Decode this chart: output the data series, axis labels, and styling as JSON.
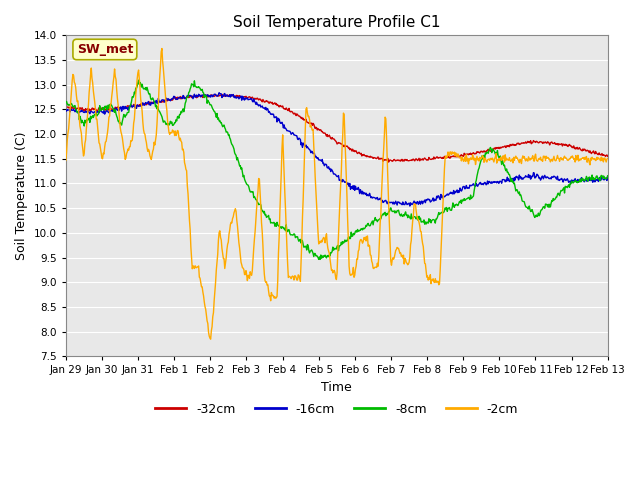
{
  "title": "Soil Temperature Profile C1",
  "xlabel": "Time",
  "ylabel": "Soil Temperature (C)",
  "ylim": [
    7.5,
    14.0
  ],
  "yticks": [
    7.5,
    8.0,
    8.5,
    9.0,
    9.5,
    10.0,
    10.5,
    11.0,
    11.5,
    12.0,
    12.5,
    13.0,
    13.5,
    14.0
  ],
  "colors": {
    "-32cm": "#cc0000",
    "-16cm": "#0000cc",
    "-8cm": "#00bb00",
    "-2cm": "#ffaa00"
  },
  "legend_labels": [
    "-32cm",
    "-16cm",
    "-8cm",
    "-2cm"
  ],
  "annotation_text": "SW_met",
  "annotation_color": "#880000",
  "annotation_bg": "#ffffcc",
  "annotation_edge": "#aaaa00",
  "axes_bg": "#e8e8e8",
  "grid_color": "#ffffff",
  "date_labels": [
    "Jan 29",
    "Jan 30",
    "Jan 31",
    "Feb 1",
    "Feb 2",
    "Feb 3",
    "Feb 4",
    "Feb 5",
    "Feb 6",
    "Feb 7",
    "Feb 8",
    "Feb 9",
    "Feb 10",
    "Feb 11",
    "Feb 12",
    "Feb 13"
  ],
  "r32_knots_x": [
    0,
    0.5,
    1,
    1.5,
    2,
    2.5,
    3,
    3.5,
    4,
    4.5,
    5,
    5.5,
    6,
    6.5,
    7,
    7.5,
    8,
    8.5,
    9,
    9.5,
    10,
    10.5,
    11,
    11.5,
    12,
    12.5,
    13,
    13.5,
    14,
    14.5,
    15
  ],
  "r32_knots_y": [
    12.55,
    12.5,
    12.5,
    12.53,
    12.58,
    12.65,
    12.72,
    12.76,
    12.78,
    12.78,
    12.75,
    12.68,
    12.55,
    12.35,
    12.1,
    11.85,
    11.65,
    11.52,
    11.47,
    11.47,
    11.5,
    11.53,
    11.57,
    11.63,
    11.72,
    11.8,
    11.85,
    11.82,
    11.75,
    11.65,
    11.55
  ],
  "r16_knots_x": [
    0,
    0.5,
    1,
    1.5,
    2,
    2.5,
    3,
    3.5,
    4,
    4.5,
    5,
    5.5,
    6,
    6.5,
    7,
    7.5,
    8,
    8.5,
    9,
    9.5,
    10,
    10.5,
    11,
    11.5,
    12,
    12.5,
    13,
    13.5,
    14,
    14.5,
    15
  ],
  "r16_knots_y": [
    12.5,
    12.45,
    12.45,
    12.5,
    12.58,
    12.65,
    12.72,
    12.76,
    12.78,
    12.78,
    12.72,
    12.55,
    12.2,
    11.85,
    11.5,
    11.15,
    10.9,
    10.72,
    10.6,
    10.58,
    10.65,
    10.75,
    10.9,
    11.0,
    11.05,
    11.1,
    11.15,
    11.1,
    11.05,
    11.08,
    11.1
  ],
  "r8_knots_x": [
    0,
    0.25,
    0.5,
    0.75,
    1,
    1.25,
    1.5,
    1.75,
    2,
    2.25,
    2.5,
    2.75,
    3,
    3.25,
    3.5,
    3.75,
    4,
    4.25,
    4.5,
    4.75,
    5,
    5.25,
    5.5,
    5.75,
    6,
    6.25,
    6.5,
    6.75,
    7,
    7.25,
    7.5,
    7.75,
    8,
    8.25,
    8.5,
    8.75,
    9,
    9.25,
    9.5,
    9.75,
    10,
    10.25,
    10.5,
    10.75,
    11,
    11.25,
    11.5,
    11.75,
    12,
    12.25,
    12.5,
    12.75,
    13,
    13.25,
    13.5,
    13.75,
    14,
    14.25,
    14.5,
    14.75,
    15
  ],
  "r8_knots_y": [
    12.65,
    12.55,
    12.2,
    12.35,
    12.5,
    12.6,
    12.2,
    12.5,
    13.05,
    12.9,
    12.6,
    12.2,
    12.2,
    12.5,
    13.05,
    12.9,
    12.6,
    12.3,
    12.0,
    11.5,
    11.0,
    10.7,
    10.4,
    10.2,
    10.1,
    10.0,
    9.82,
    9.65,
    9.5,
    9.55,
    9.7,
    9.85,
    10.0,
    10.1,
    10.2,
    10.35,
    10.45,
    10.4,
    10.35,
    10.3,
    10.2,
    10.3,
    10.45,
    10.55,
    10.65,
    10.7,
    11.5,
    11.7,
    11.55,
    11.2,
    10.85,
    10.55,
    10.35,
    10.5,
    10.65,
    10.85,
    11.0,
    11.08,
    11.1,
    11.12,
    11.1
  ],
  "r2_knots_x": [
    0,
    0.2,
    0.35,
    0.5,
    0.7,
    0.85,
    1.0,
    1.15,
    1.35,
    1.5,
    1.65,
    1.85,
    2.0,
    2.15,
    2.35,
    2.5,
    2.65,
    2.85,
    3.0,
    3.1,
    3.2,
    3.35,
    3.5,
    3.65,
    3.85,
    4.0,
    4.1,
    4.25,
    4.4,
    4.55,
    4.7,
    4.85,
    5.0,
    5.15,
    5.35,
    5.5,
    5.65,
    5.85,
    6.0,
    6.15,
    6.35,
    6.5,
    6.65,
    6.85,
    7.0,
    7.2,
    7.35,
    7.5,
    7.7,
    7.85,
    8.0,
    8.15,
    8.35,
    8.5,
    8.65,
    8.85,
    9.0,
    9.15,
    9.35,
    9.5,
    9.65,
    9.85,
    10.0,
    10.15,
    10.35,
    10.5,
    10.65,
    10.85,
    11.0,
    11.15,
    11.35,
    11.5,
    11.7,
    11.85,
    12.0,
    12.15,
    12.35,
    12.5,
    12.65,
    12.85,
    13.0,
    13.15,
    13.35,
    13.5,
    13.65,
    13.85,
    14.0,
    14.15,
    14.35,
    14.5,
    14.65,
    14.85,
    15.0
  ],
  "r2_knots_y": [
    11.5,
    13.25,
    12.5,
    11.5,
    13.3,
    12.3,
    11.45,
    12.0,
    13.3,
    12.2,
    11.47,
    11.95,
    13.35,
    12.1,
    11.45,
    11.95,
    13.72,
    12.0,
    12.05,
    12.0,
    11.85,
    11.2,
    9.3,
    9.32,
    8.55,
    7.78,
    8.5,
    10.05,
    9.35,
    10.1,
    10.5,
    9.35,
    9.15,
    9.1,
    11.2,
    9.1,
    8.72,
    8.7,
    12.05,
    9.15,
    9.1,
    9.05,
    12.55,
    12.0,
    9.75,
    9.95,
    9.3,
    9.08,
    12.6,
    9.2,
    9.15,
    9.85,
    9.9,
    9.3,
    9.35,
    12.5,
    9.3,
    9.7,
    9.5,
    9.3,
    10.65,
    9.95,
    9.08,
    9.03,
    9.0,
    11.55,
    11.65,
    11.55,
    11.5,
    11.5,
    11.5,
    11.5,
    11.5,
    11.5,
    11.5,
    11.5,
    11.5,
    11.5,
    11.5,
    11.5,
    11.5,
    11.5,
    11.5,
    11.5,
    11.5,
    11.5,
    11.5,
    11.5,
    11.5,
    11.5,
    11.5,
    11.5,
    11.5
  ]
}
